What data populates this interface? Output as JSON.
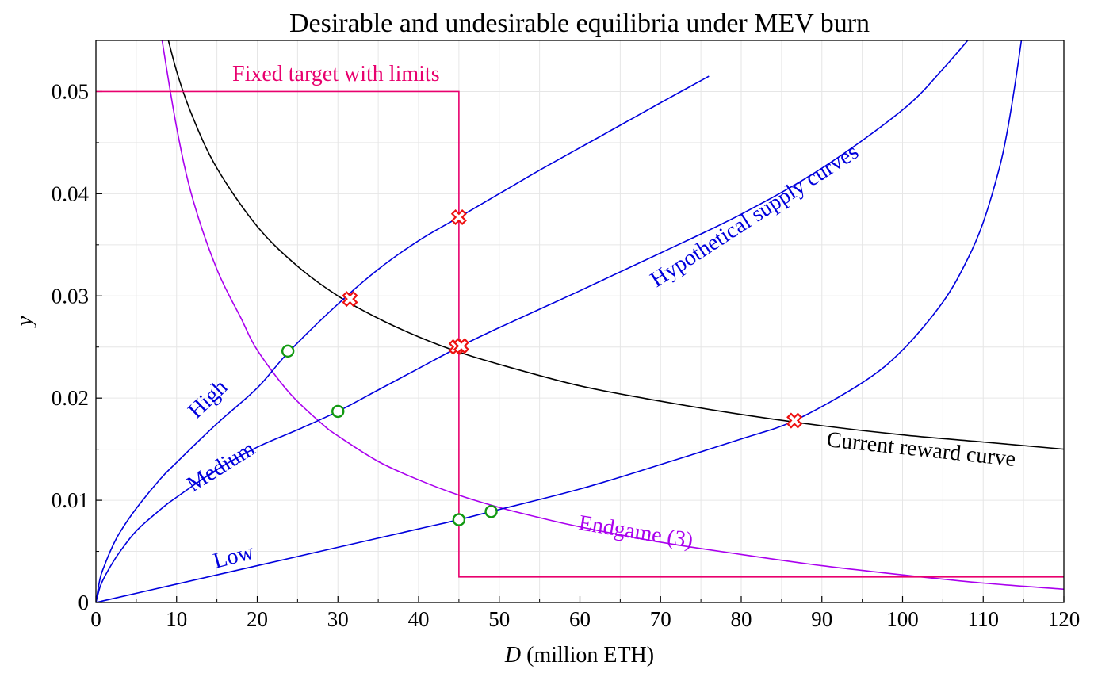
{
  "chart_data": {
    "type": "line",
    "title": "Desirable and undesirable equilibria under MEV burn",
    "xlabel_italic": "D",
    "xlabel_rest": " (million ETH)",
    "ylabel": "y",
    "xlim": [
      0,
      120
    ],
    "ylim": [
      0,
      0.055
    ],
    "grid": true,
    "x_ticks": [
      0,
      10,
      20,
      30,
      40,
      50,
      60,
      70,
      80,
      90,
      100,
      110,
      120
    ],
    "x_tick_labels": [
      "0",
      "10",
      "20",
      "30",
      "40",
      "50",
      "60",
      "70",
      "80",
      "90",
      "100",
      "110",
      "120"
    ],
    "y_ticks": [
      0,
      0.01,
      0.02,
      0.03,
      0.04,
      0.05
    ],
    "y_tick_labels": [
      "0",
      "0.01",
      "0.02",
      "0.03",
      "0.04",
      "0.05"
    ],
    "colors": {
      "supply": "#0000dd",
      "reward": "#000000",
      "endgame": "#aa00ee",
      "fixed_target": "#e8006e",
      "desirable_marker": "#119911",
      "undesirable_marker": "#ee1111"
    },
    "series": [
      {
        "name": "Current reward curve",
        "x": [
          8,
          10,
          12,
          15,
          20,
          25,
          30,
          35,
          40,
          45,
          50,
          60,
          70,
          80,
          90,
          100,
          110,
          120
        ],
        "y": [
          0.0581,
          0.052,
          0.0475,
          0.0425,
          0.0368,
          0.0329,
          0.03,
          0.0278,
          0.026,
          0.0245,
          0.0233,
          0.0212,
          0.0197,
          0.0184,
          0.0173,
          0.0164,
          0.0157,
          0.015
        ]
      },
      {
        "name": "Endgame (3)",
        "x": [
          8,
          10,
          12,
          15,
          18,
          20,
          24,
          28,
          30,
          35,
          40,
          45,
          50,
          55,
          60,
          70,
          80,
          90,
          100,
          110,
          120
        ],
        "y": [
          0.056,
          0.0465,
          0.0395,
          0.0326,
          0.0278,
          0.0247,
          0.0205,
          0.0175,
          0.0163,
          0.0138,
          0.012,
          0.0105,
          0.0093,
          0.0083,
          0.0074,
          0.0059,
          0.0047,
          0.0036,
          0.0027,
          0.0019,
          0.0013
        ]
      },
      {
        "name": "Fixed target with limits",
        "x": [
          0,
          45,
          45,
          120
        ],
        "y": [
          0.05,
          0.05,
          0.0025,
          0.0025
        ]
      },
      {
        "name": "High",
        "x": [
          0,
          0.5,
          1,
          2,
          3,
          5,
          8,
          10,
          15,
          20,
          24,
          30,
          35,
          40,
          45,
          50,
          55,
          60,
          65,
          70,
          76
        ],
        "y": [
          0,
          0.0023,
          0.0035,
          0.0054,
          0.0069,
          0.0092,
          0.0121,
          0.0137,
          0.0175,
          0.021,
          0.0246,
          0.0292,
          0.0326,
          0.0354,
          0.0377,
          0.04,
          0.0423,
          0.0445,
          0.0467,
          0.0489,
          0.0515
        ]
      },
      {
        "name": "Medium",
        "x": [
          0,
          0.5,
          1,
          2,
          3,
          5,
          8,
          10,
          15,
          20,
          25,
          30,
          35,
          40,
          45,
          50,
          60,
          70,
          80,
          90,
          100,
          105,
          110
        ],
        "y": [
          0,
          0.0015,
          0.0024,
          0.0038,
          0.005,
          0.007,
          0.0091,
          0.0103,
          0.013,
          0.0152,
          0.0169,
          0.0187,
          0.0208,
          0.0229,
          0.025,
          0.0269,
          0.0305,
          0.0342,
          0.038,
          0.0425,
          0.0482,
          0.0522,
          0.0568
        ]
      },
      {
        "name": "Low",
        "x": [
          0,
          10,
          20,
          30,
          40,
          45,
          49,
          60,
          70,
          80,
          86.6,
          95,
          100,
          105,
          108,
          110,
          112,
          113,
          114,
          115
        ],
        "y": [
          0,
          0.0018,
          0.0036,
          0.0054,
          0.0072,
          0.0081,
          0.0089,
          0.0111,
          0.0135,
          0.016,
          0.0178,
          0.0215,
          0.0247,
          0.0294,
          0.0335,
          0.0372,
          0.0425,
          0.0462,
          0.051,
          0.0565
        ]
      }
    ],
    "desirable_points": [
      {
        "x": 23.8,
        "y": 0.0246
      },
      {
        "x": 30,
        "y": 0.0187
      },
      {
        "x": 45,
        "y": 0.0081
      },
      {
        "x": 49,
        "y": 0.0089
      }
    ],
    "undesirable_points": [
      {
        "x": 31.5,
        "y": 0.0297
      },
      {
        "x": 45,
        "y": 0.0377
      },
      {
        "x": 44.7,
        "y": 0.025
      },
      {
        "x": 45.3,
        "y": 0.0251
      },
      {
        "x": 86.6,
        "y": 0.0178
      }
    ],
    "annotations": {
      "fixed_target": "Fixed target with limits",
      "supply_curves": "Hypothetical supply curves",
      "current_reward": "Current reward curve",
      "endgame": "Endgame (3)",
      "high": "High",
      "medium": "Medium",
      "low": "Low"
    }
  }
}
